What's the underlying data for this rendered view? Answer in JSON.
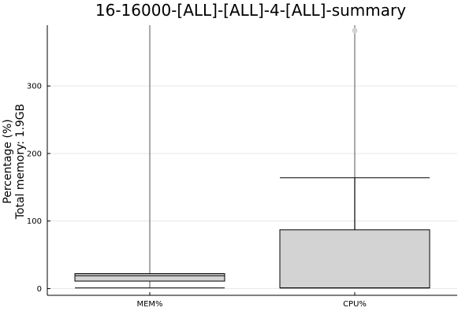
{
  "chart_data": {
    "type": "box",
    "title": "16-16000-[ALL]-[ALL]-4-[ALL]-summary",
    "ylabel_line1": "Percentage (%)",
    "ylabel_line2": "Total memory: 1.9GB",
    "ylim": [
      -10,
      390
    ],
    "yticks": [
      0,
      100,
      200,
      300
    ],
    "grid": "horizontal",
    "categories": [
      "MEM%",
      "CPU%"
    ],
    "boxes": [
      {
        "category": "MEM%",
        "whisker_low": 1,
        "q1": 11,
        "median": 19,
        "q3": 22,
        "whisker_high": 22,
        "outliers": [],
        "vline_top": 390
      },
      {
        "category": "CPU%",
        "whisker_low": 1,
        "q1": 1,
        "median": 1,
        "q3": 87,
        "whisker_high": 164,
        "outliers": [
          382
        ],
        "vline_top": 390
      }
    ],
    "colors": {
      "box_fill": "#d3d3d3",
      "outlier": "#d3d3d3",
      "grid": "#e6e6e6",
      "axis": "#000000"
    }
  }
}
